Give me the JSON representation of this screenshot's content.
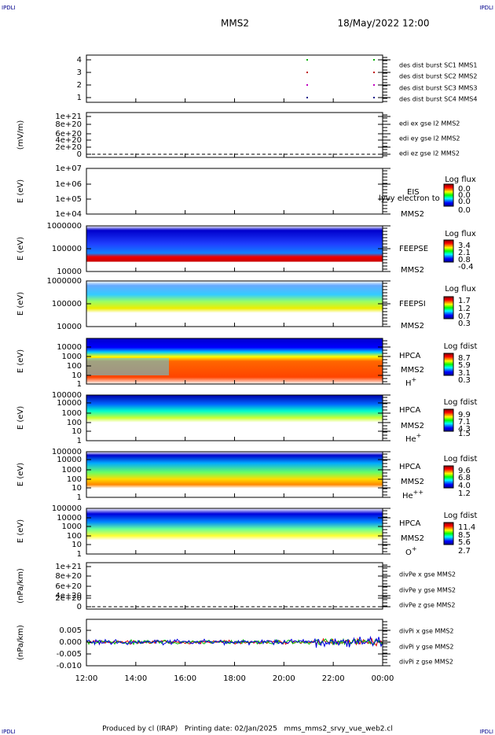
{
  "header": {
    "logo_left": "IPDLI",
    "logo_right": "IPDLI",
    "mission": "MMS2",
    "datetime": "18/May/2022 12:00"
  },
  "panels": [
    {
      "yticks": [
        "4",
        "3",
        "2",
        "1"
      ],
      "legend": [
        "des dist burst SC1 MMS1",
        "des dist burst SC2 MMS2",
        "des dist burst SC3 MMS3",
        "des dist burst SC4 MMS4"
      ]
    },
    {
      "ylabel": "(mV/m)",
      "yticks": [
        "1e+21",
        "8e+20",
        "6e+20",
        "4e+20",
        "2e+20",
        "0"
      ],
      "legend": [
        "edi ex gse l2 MMS2",
        "edi ey gse l2 MMS2",
        "edi ez gse l2 MMS2"
      ]
    },
    {
      "ylabel": "E (eV)",
      "yticks": [
        "1e+07",
        "1e+06",
        "1e+05",
        "1e+04"
      ],
      "instrument": "EIS",
      "spacecraft": "MMS2",
      "overlay": "lyvy electron to",
      "colorbar_title": "Log flux",
      "colorbar_labels": [
        "0.0",
        "0.0",
        "0.0",
        "0.0"
      ]
    },
    {
      "ylabel": "E (eV)",
      "yticks": [
        "1000000",
        "100000",
        "10000"
      ],
      "instrument": "FEEPSE",
      "spacecraft": "MMS2",
      "colorbar_title": "Log flux",
      "colorbar_labels": [
        "3.4",
        "2.1",
        "0.8",
        "-0.4"
      ]
    },
    {
      "ylabel": "E (eV)",
      "yticks": [
        "1000000",
        "100000",
        "10000"
      ],
      "instrument": "FEEPSI",
      "spacecraft": "MMS2",
      "colorbar_title": "Log flux",
      "colorbar_labels": [
        "1.7",
        "1.2",
        "0.7",
        "0.3"
      ]
    },
    {
      "ylabel": "E (eV)",
      "yticks": [
        "10000",
        "1000",
        "100",
        "10",
        "1"
      ],
      "instrument": "HPCA",
      "spacecraft": "MMS2",
      "species": {
        "base": "H",
        "charge": "+"
      },
      "colorbar_title": "Log fdist",
      "colorbar_labels": [
        "8.7",
        "5.9",
        "3.1",
        "0.3"
      ]
    },
    {
      "ylabel": "E (eV)",
      "yticks": [
        "100000",
        "10000",
        "1000",
        "100",
        "10",
        "1"
      ],
      "instrument": "HPCA",
      "spacecraft": "MMS2",
      "species": {
        "base": "He",
        "charge": "+"
      },
      "colorbar_title": "Log fdist",
      "colorbar_labels": [
        "9.9",
        "7.1",
        "4.3",
        "1.5"
      ]
    },
    {
      "ylabel": "E (eV)",
      "yticks": [
        "100000",
        "10000",
        "1000",
        "100",
        "10",
        "1"
      ],
      "instrument": "HPCA",
      "spacecraft": "MMS2",
      "species": {
        "base": "He",
        "charge": "++"
      },
      "colorbar_title": "Log fdist",
      "colorbar_labels": [
        "9.6",
        "6.8",
        "4.0",
        "1.2"
      ]
    },
    {
      "ylabel": "E (eV)",
      "yticks": [
        "100000",
        "10000",
        "1000",
        "100",
        "10",
        "1"
      ],
      "instrument": "HPCA",
      "spacecraft": "MMS2",
      "species": {
        "base": "O",
        "charge": "+"
      },
      "colorbar_title": "Log fdist",
      "colorbar_labels": [
        "11.4",
        "8.5",
        "5.6",
        "2.7"
      ]
    },
    {
      "ylabel": "(nPa/km)",
      "yticks": [
        "1e+21",
        "8e+20",
        "6e+20",
        "4e+20",
        "2e+20",
        "0"
      ],
      "legend": [
        "divPe x gse MMS2",
        "divPe y gse MMS2",
        "divPe z gse MMS2"
      ]
    },
    {
      "ylabel": "(nPa/km)",
      "yticks": [
        "0.005",
        "0.000",
        "-0.005",
        "-0.010"
      ],
      "legend": [
        "divPi x gse MMS2",
        "divPi y gse MMS2",
        "divPi z gse MMS2"
      ]
    }
  ],
  "xticks": [
    "12:00",
    "14:00",
    "16:00",
    "18:00",
    "20:00",
    "22:00",
    "00:00"
  ],
  "footer": {
    "credit": "Produced by cl (IRAP)   Printing date: 02/Jan/2025   mms_mms2_srvy_vue_web2.cl",
    "logo_left": "IPDLI",
    "logo_right": "IPDLI"
  }
}
